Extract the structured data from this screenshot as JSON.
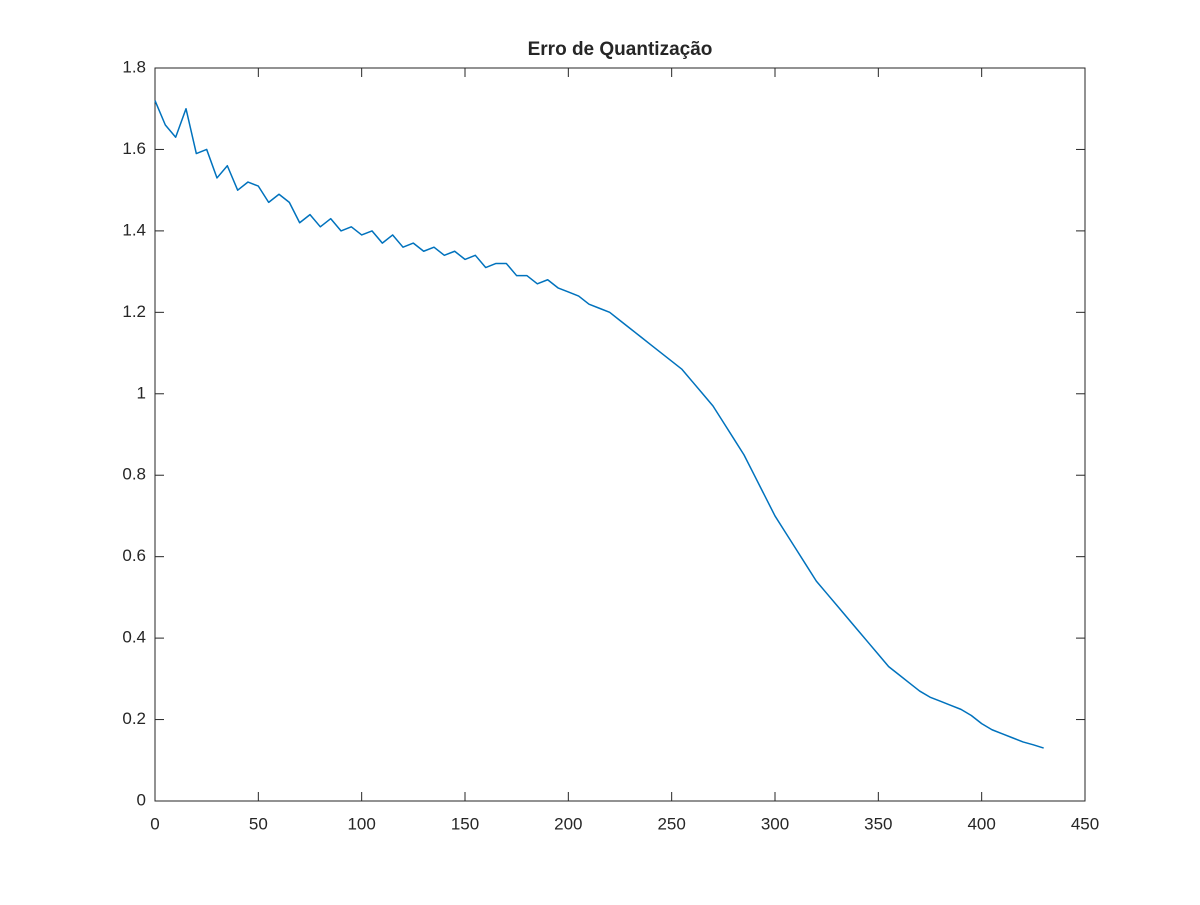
{
  "chart_data": {
    "type": "line",
    "title": "Erro de Quantização",
    "x": [
      0,
      5,
      10,
      15,
      20,
      25,
      30,
      35,
      40,
      45,
      50,
      55,
      60,
      65,
      70,
      75,
      80,
      85,
      90,
      95,
      100,
      105,
      110,
      115,
      120,
      125,
      130,
      135,
      140,
      145,
      150,
      155,
      160,
      165,
      170,
      175,
      180,
      185,
      190,
      195,
      200,
      205,
      210,
      215,
      220,
      225,
      230,
      235,
      240,
      245,
      250,
      255,
      260,
      265,
      270,
      275,
      280,
      285,
      290,
      295,
      300,
      305,
      310,
      315,
      320,
      325,
      330,
      335,
      340,
      345,
      350,
      355,
      360,
      365,
      370,
      375,
      380,
      385,
      390,
      395,
      400,
      405,
      410,
      415,
      420,
      425,
      430
    ],
    "series": [
      {
        "color": "#0072bd",
        "values": [
          1.72,
          1.66,
          1.63,
          1.7,
          1.59,
          1.6,
          1.53,
          1.56,
          1.5,
          1.52,
          1.51,
          1.47,
          1.49,
          1.47,
          1.42,
          1.44,
          1.41,
          1.43,
          1.4,
          1.41,
          1.39,
          1.4,
          1.37,
          1.39,
          1.36,
          1.37,
          1.35,
          1.36,
          1.34,
          1.35,
          1.33,
          1.34,
          1.31,
          1.32,
          1.32,
          1.29,
          1.29,
          1.27,
          1.28,
          1.26,
          1.25,
          1.24,
          1.22,
          1.21,
          1.2,
          1.18,
          1.16,
          1.14,
          1.12,
          1.1,
          1.08,
          1.06,
          1.03,
          1.0,
          0.97,
          0.93,
          0.89,
          0.85,
          0.8,
          0.75,
          0.7,
          0.66,
          0.62,
          0.58,
          0.54,
          0.51,
          0.48,
          0.45,
          0.42,
          0.39,
          0.36,
          0.33,
          0.31,
          0.29,
          0.27,
          0.255,
          0.245,
          0.235,
          0.225,
          0.21,
          0.19,
          0.175,
          0.165,
          0.155,
          0.145,
          0.138,
          0.13
        ]
      }
    ],
    "xlim": [
      0,
      450
    ],
    "xticks": [
      0,
      50,
      100,
      150,
      200,
      250,
      300,
      350,
      400,
      450
    ],
    "ylim": [
      0,
      1.8
    ],
    "yticks": [
      0,
      0.2,
      0.4,
      0.6,
      0.8,
      1,
      1.2,
      1.4,
      1.6,
      1.8
    ],
    "grid": false
  }
}
